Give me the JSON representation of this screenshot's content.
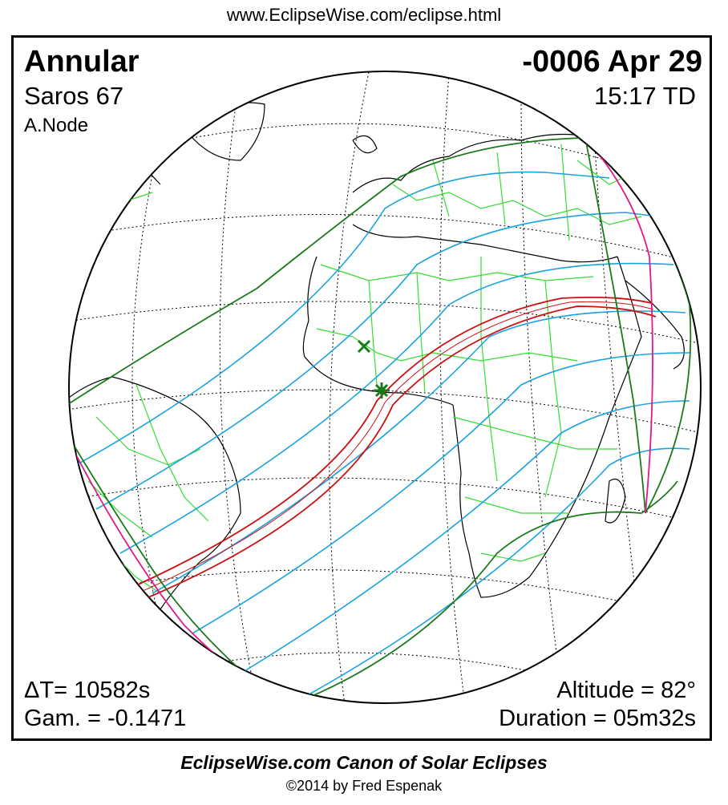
{
  "header": {
    "url": "www.EclipseWise.com/eclipse.html"
  },
  "eclipse": {
    "type": "Annular",
    "saros": "Saros  67",
    "node": "A.Node",
    "date": "-0006 Apr 29",
    "time": "15:17 TD",
    "delta_t": "ΔT=  10582s",
    "gamma": "Gam. = -0.1471",
    "altitude": "Altitude = 82°",
    "duration": "Duration = 05m32s"
  },
  "colors": {
    "penumbra_limits": "#1a7a1a",
    "penumbra_lines": "#1aa3e0",
    "central_path": "#cc1111",
    "sunrise_sunset": "#e0188c",
    "coastlines": "#000000",
    "borders": "#33dd33",
    "graticule": "#000000"
  },
  "markers": {
    "greatest_eclipse": "star-icon",
    "sub_solar_point": "cross-icon"
  },
  "footer": {
    "title": "EclipseWise.com Canon of Solar Eclipses",
    "copyright": "©2014 by Fred Espenak"
  }
}
